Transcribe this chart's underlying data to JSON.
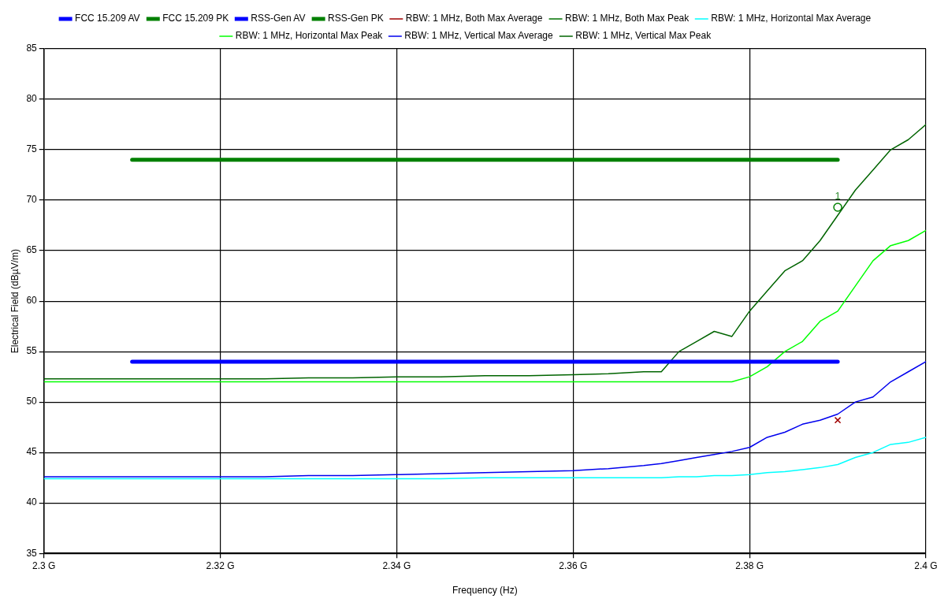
{
  "chart_data": {
    "type": "line",
    "xlabel": "Frequency (Hz)",
    "ylabel": "Electrical Field (dBµV/m)",
    "x": [
      2.3,
      2.305,
      2.31,
      2.315,
      2.32,
      2.325,
      2.33,
      2.335,
      2.34,
      2.345,
      2.35,
      2.355,
      2.36,
      2.364,
      2.368,
      2.37,
      2.372,
      2.374,
      2.376,
      2.378,
      2.38,
      2.382,
      2.384,
      2.386,
      2.388,
      2.39,
      2.392,
      2.394,
      2.396,
      2.398,
      2.4
    ],
    "xlim": [
      2.3,
      2.4
    ],
    "xticks": [
      {
        "value": 2.3,
        "label": "2.3 G"
      },
      {
        "value": 2.32,
        "label": "2.32 G"
      },
      {
        "value": 2.34,
        "label": "2.34 G"
      },
      {
        "value": 2.36,
        "label": "2.36 G"
      },
      {
        "value": 2.38,
        "label": "2.38 G"
      },
      {
        "value": 2.4,
        "label": "2.4 G"
      }
    ],
    "ylim": [
      35,
      85
    ],
    "yticks": [
      35,
      40,
      45,
      50,
      55,
      60,
      65,
      70,
      75,
      80,
      85
    ],
    "grid": true,
    "legend": "top",
    "marker": "none",
    "line_style": "solid",
    "series": [
      {
        "name": "FCC 15.209 AV",
        "color": "#0000ff",
        "values": [
          null,
          null,
          54,
          54,
          54,
          54,
          54,
          54,
          54,
          54,
          54,
          54,
          54,
          54,
          54,
          54,
          54,
          54,
          54,
          54,
          54,
          54,
          54,
          54,
          54,
          54,
          null,
          null,
          null,
          null,
          null
        ]
      },
      {
        "name": "FCC 15.209 PK",
        "color": "#008000",
        "values": [
          null,
          null,
          74,
          74,
          74,
          74,
          74,
          74,
          74,
          74,
          74,
          74,
          74,
          74,
          74,
          74,
          74,
          74,
          74,
          74,
          74,
          74,
          74,
          74,
          74,
          74,
          null,
          null,
          null,
          null,
          null
        ]
      },
      {
        "name": "RSS-Gen AV",
        "color": "#0000ff",
        "values": [
          null,
          null,
          null,
          null,
          null,
          null,
          null,
          null,
          null,
          null,
          null,
          null,
          null,
          null,
          null,
          null,
          null,
          null,
          null,
          null,
          null,
          null,
          null,
          null,
          null,
          null,
          null,
          null,
          null,
          null,
          null
        ]
      },
      {
        "name": "RSS-Gen PK",
        "color": "#008000",
        "values": [
          null,
          null,
          null,
          null,
          null,
          null,
          null,
          null,
          null,
          null,
          null,
          null,
          null,
          null,
          null,
          null,
          null,
          null,
          null,
          null,
          null,
          null,
          null,
          null,
          null,
          null,
          null,
          null,
          null,
          null,
          null
        ]
      },
      {
        "name": "RBW: 1 MHz, Both Max Average",
        "color": "#a00000",
        "values": [
          null,
          null,
          null,
          null,
          null,
          null,
          null,
          null,
          null,
          null,
          null,
          null,
          null,
          null,
          null,
          null,
          null,
          null,
          null,
          null,
          null,
          null,
          null,
          null,
          null,
          null,
          null,
          null,
          null,
          null,
          null
        ]
      },
      {
        "name": "RBW: 1 MHz, Both Max Peak",
        "color": "#007000",
        "values": [
          null,
          null,
          null,
          null,
          null,
          null,
          null,
          null,
          null,
          null,
          null,
          null,
          null,
          null,
          null,
          null,
          null,
          null,
          null,
          null,
          null,
          null,
          null,
          null,
          null,
          null,
          null,
          null,
          null,
          null,
          null
        ]
      },
      {
        "name": "RBW: 1 MHz, Horizontal Max Average",
        "color": "#00ffff",
        "values": [
          42.4,
          42.4,
          42.4,
          42.4,
          42.4,
          42.4,
          42.4,
          42.4,
          42.4,
          42.4,
          42.5,
          42.5,
          42.5,
          42.5,
          42.5,
          42.5,
          42.6,
          42.6,
          42.7,
          42.7,
          42.8,
          43,
          43.1,
          43.3,
          43.5,
          43.8,
          44.5,
          45,
          45.8,
          46,
          46.5
        ]
      },
      {
        "name": "RBW: 1 MHz, Horizontal Max Peak",
        "color": "#00ff00",
        "values": [
          52,
          52,
          52,
          52,
          52,
          52,
          52,
          52,
          52,
          52,
          52,
          52,
          52,
          52,
          52,
          52,
          52,
          52,
          52,
          52,
          52.5,
          53.5,
          55,
          56,
          58,
          59,
          61.5,
          64,
          65.5,
          66,
          67
        ]
      },
      {
        "name": "RBW: 1 MHz, Vertical Max Average",
        "color": "#0000ee",
        "values": [
          42.6,
          42.6,
          42.6,
          42.6,
          42.6,
          42.6,
          42.7,
          42.7,
          42.8,
          42.9,
          43,
          43.1,
          43.2,
          43.4,
          43.7,
          43.9,
          44.2,
          44.5,
          44.8,
          45.1,
          45.5,
          46.5,
          47,
          47.8,
          48.2,
          48.8,
          50,
          50.5,
          52,
          53,
          54
        ]
      },
      {
        "name": "RBW: 1 MHz, Vertical Max Peak",
        "color": "#006400",
        "values": [
          52.3,
          52.3,
          52.3,
          52.3,
          52.3,
          52.3,
          52.4,
          52.4,
          52.5,
          52.5,
          52.6,
          52.6,
          52.7,
          52.8,
          53,
          53,
          55,
          56,
          57,
          56.5,
          59,
          61,
          63,
          64,
          66,
          68.5,
          71,
          73,
          75,
          76,
          77.5
        ]
      },
      {
        "type": "scatter",
        "color": "#008000",
        "marker": "circle",
        "values": [
          null,
          null,
          null,
          null,
          null,
          null,
          null,
          null,
          null,
          null,
          null,
          null,
          null,
          null,
          null,
          null,
          null,
          null,
          null,
          null,
          null,
          null,
          null,
          null,
          null,
          69.3,
          null,
          null,
          null,
          null,
          null
        ]
      },
      {
        "type": "scatter",
        "color": "#a00000",
        "marker": "cross",
        "values": [
          null,
          null,
          null,
          null,
          null,
          null,
          null,
          null,
          null,
          null,
          null,
          null,
          null,
          null,
          null,
          null,
          null,
          null,
          null,
          null,
          null,
          null,
          null,
          null,
          null,
          48.2,
          null,
          null,
          null,
          null,
          null
        ]
      }
    ],
    "annotations": [
      {
        "text": "1",
        "x": 2.39,
        "y": 69.3
      }
    ]
  }
}
